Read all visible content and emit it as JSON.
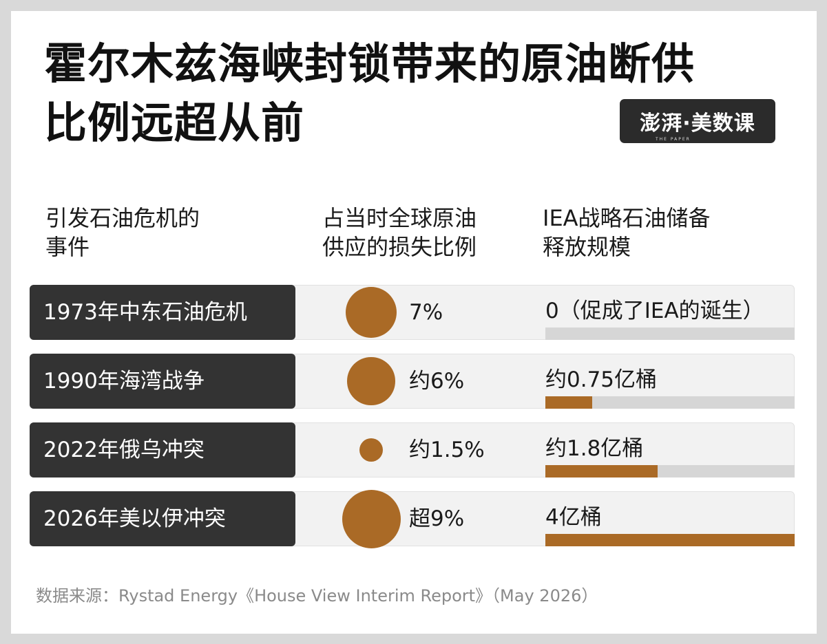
{
  "title": {
    "line1": "霍尔木兹海峡封锁带来的原油断供",
    "line2": "比例远超从前"
  },
  "logo": {
    "text": "澎湃·美数课",
    "sub": "THE PAPER"
  },
  "headers": {
    "event_l1": "引发石油危机的",
    "event_l2": "事件",
    "loss_l1": "占当时全球原油",
    "loss_l2": "供应的损失比例",
    "iea_l1": "IEA战略石油储备",
    "iea_l2": "释放规模"
  },
  "chart_data": {
    "type": "table",
    "colors": {
      "accent": "#aa6a26",
      "label_bg": "#333333",
      "track": "#d6d6d6"
    },
    "rows": [
      {
        "event": "1973年中东石油危机",
        "loss_text": "7%",
        "loss_pct": 7,
        "iea_text": "0（促成了IEA的诞生）",
        "iea_value": 0
      },
      {
        "event": "1990年海湾战争",
        "loss_text": "约6%",
        "loss_pct": 6,
        "iea_text": "约0.75亿桶",
        "iea_value": 0.75
      },
      {
        "event": "2022年俄乌冲突",
        "loss_text": "约1.5%",
        "loss_pct": 1.5,
        "iea_text": "约1.8亿桶",
        "iea_value": 1.8
      },
      {
        "event": "2026年美以伊冲突",
        "loss_text": "超9%",
        "loss_pct": 9,
        "iea_text": "4亿桶",
        "iea_value": 4
      }
    ],
    "iea_max": 4
  },
  "source": "数据来源：Rystad Energy《House View Interim Report》（May 2026）"
}
